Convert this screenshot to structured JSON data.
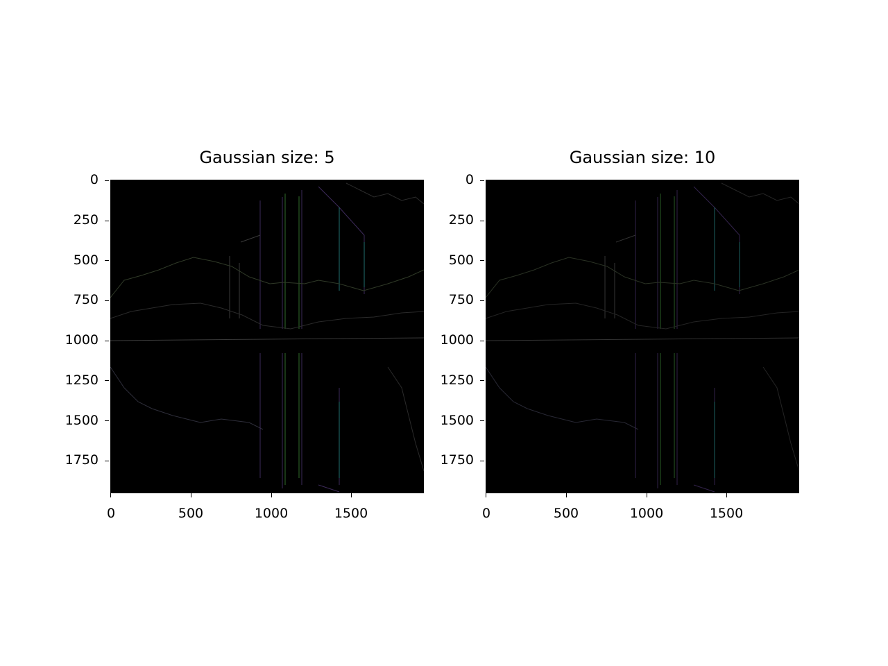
{
  "figure": {
    "panels": [
      {
        "title": "Gaussian size: 5",
        "yticks": [
          "0",
          "250",
          "500",
          "750",
          "1000",
          "1250",
          "1500",
          "1750"
        ],
        "xticks": [
          "0",
          "500",
          "1000",
          "1500"
        ]
      },
      {
        "title": "Gaussian size: 10",
        "yticks": [
          "0",
          "250",
          "500",
          "750",
          "1000",
          "1250",
          "1500",
          "1750"
        ],
        "xticks": [
          "0",
          "500",
          "1000",
          "1500"
        ]
      }
    ],
    "image_extent": {
      "x": [
        0,
        1950
      ],
      "y": [
        0,
        1950
      ]
    },
    "colors": {
      "background": "#000000",
      "edge_dim": "#2a2a2a",
      "edge_green": "#2f6b2a",
      "edge_purple": "#4a2a6a",
      "edge_cyan": "#1f6f6f"
    }
  }
}
